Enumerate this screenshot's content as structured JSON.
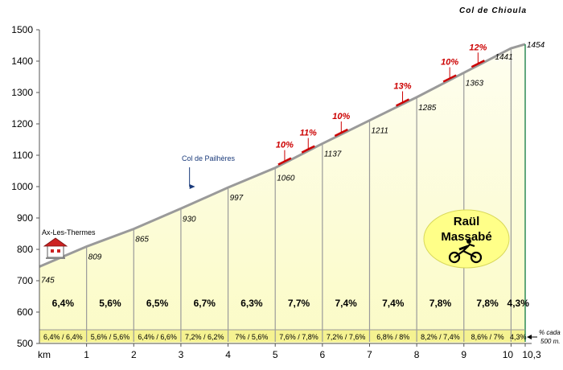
{
  "chart_data": {
    "type": "area",
    "title": "Col de Chioula",
    "xlabel": "km",
    "ylabel": "",
    "xlim": [
      0,
      10.3
    ],
    "ylim": [
      500,
      1500
    ],
    "yticks": [
      500,
      600,
      700,
      800,
      900,
      1000,
      1100,
      1200,
      1300,
      1400,
      1500
    ],
    "xticks": [
      "0",
      "1",
      "2",
      "3",
      "4",
      "5",
      "6",
      "7",
      "8",
      "9",
      "10",
      "10,3"
    ],
    "xtick_values": [
      0,
      1,
      2,
      3,
      4,
      5,
      6,
      7,
      8,
      9,
      10,
      10.3
    ],
    "profile": {
      "x": [
        0,
        1,
        2,
        3,
        4,
        5,
        6,
        7,
        8,
        9,
        10,
        10.3
      ],
      "y": [
        745,
        809,
        865,
        930,
        997,
        1060,
        1137,
        1211,
        1285,
        1363,
        1441,
        1454
      ]
    },
    "elevation_labels": [
      "745",
      "809",
      "865",
      "930",
      "997",
      "1060",
      "1137",
      "1211",
      "1285",
      "1363",
      "1441",
      "1454"
    ],
    "km_gradients": [
      "6,4%",
      "5,6%",
      "6,5%",
      "6,7%",
      "6,3%",
      "7,7%",
      "7,4%",
      "7,4%",
      "7,8%",
      "7,8%",
      "4,3%"
    ],
    "half_km_gradients": [
      "6,4% / 6,4%",
      "5,6% / 5,6%",
      "6,4% / 6,6%",
      "7,2% / 6,2%",
      "7% / 5,6%",
      "7,6% / 7,8%",
      "7,2% / 7,6%",
      "6,8% / 8%",
      "8,2% / 7,4%",
      "8,6% / 7%",
      "4,3%"
    ],
    "steep_sections": [
      {
        "km": 5.2,
        "label": "10%"
      },
      {
        "km": 5.7,
        "label": "11%"
      },
      {
        "km": 6.4,
        "label": "10%"
      },
      {
        "km": 7.7,
        "label": "13%"
      },
      {
        "km": 8.7,
        "label": "10%"
      },
      {
        "km": 9.3,
        "label": "12%"
      }
    ],
    "annotations": {
      "start_town": "Ax-Les-Thermes",
      "pass": {
        "label": "Col de Pailhères",
        "km": 3.2
      },
      "author": [
        "Raül",
        "Massabé"
      ],
      "footnote": [
        "% cada",
        "500 m."
      ]
    }
  },
  "colors": {
    "fill": "#fbfbc6",
    "fill_top": "#fefef0",
    "band": "#f5f291",
    "grid": "#9a9a9a",
    "steep": "#cc0000",
    "author_bubble": "#ffff88",
    "end_line": "#2e8b57",
    "pass_marker": "#1a3a7a"
  }
}
